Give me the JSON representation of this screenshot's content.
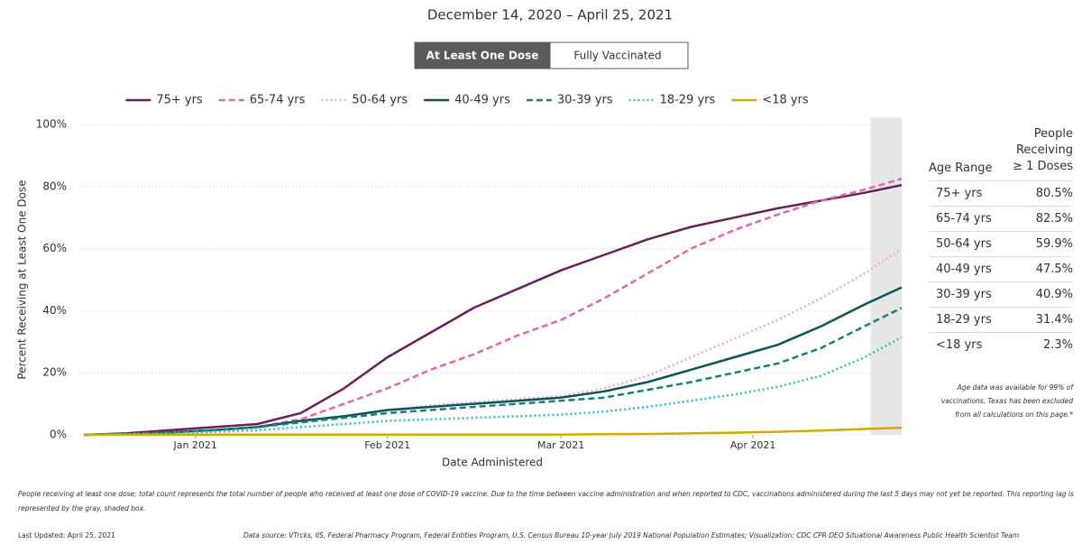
{
  "chart_data": {
    "type": "line",
    "title": "December 14, 2020 – April 25, 2021",
    "toggle": {
      "options": [
        "At Least One Dose",
        "Fully Vaccinated"
      ],
      "active": 0
    },
    "x_label": "Date Administered",
    "y_label": "Percent Receiving at Least One Dose",
    "x": [
      "2020-12-14",
      "2020-12-21",
      "2020-12-28",
      "2021-01-04",
      "2021-01-11",
      "2021-01-18",
      "2021-01-25",
      "2021-02-01",
      "2021-02-08",
      "2021-02-15",
      "2021-02-22",
      "2021-03-01",
      "2021-03-08",
      "2021-03-15",
      "2021-03-22",
      "2021-03-29",
      "2021-04-05",
      "2021-04-12",
      "2021-04-19",
      "2021-04-25"
    ],
    "xlim": [
      "2020-12-14",
      "2021-04-25"
    ],
    "xticks": [
      {
        "value": "2021-01-01",
        "label": "Jan 2021"
      },
      {
        "value": "2021-02-01",
        "label": "Feb 2021"
      },
      {
        "value": "2021-03-01",
        "label": "Mar 2021"
      },
      {
        "value": "2021-04-01",
        "label": "Apr 2021"
      }
    ],
    "ylim": [
      0,
      100
    ],
    "yticks": [
      {
        "value": 0,
        "label": "0%"
      },
      {
        "value": 20,
        "label": "20%"
      },
      {
        "value": 40,
        "label": "40%"
      },
      {
        "value": 60,
        "label": "60%"
      },
      {
        "value": 80,
        "label": "80%"
      },
      {
        "value": 100,
        "label": "100%"
      }
    ],
    "grid": true,
    "shaded_range": [
      "2021-04-20",
      "2021-04-25"
    ],
    "series": [
      {
        "name": "75+ yrs",
        "color": "#6b1f5a",
        "dash": "solid",
        "values": [
          0,
          0.5,
          1.5,
          2.5,
          3.5,
          7,
          15,
          25,
          33,
          41,
          47,
          53,
          58,
          63,
          67,
          70,
          73,
          75.5,
          78,
          80.5
        ]
      },
      {
        "name": "65-74 yrs",
        "color": "#e066b0",
        "dash": "dashed",
        "values": [
          0,
          0.3,
          0.8,
          1.5,
          2.5,
          5,
          10,
          15,
          21,
          26,
          32,
          37,
          44,
          52,
          60,
          66,
          71,
          75.5,
          79,
          82.5
        ]
      },
      {
        "name": "50-64 yrs",
        "color": "#f2a6d8",
        "dash": "dotted",
        "values": [
          0,
          0.3,
          0.8,
          1.5,
          2.5,
          4.5,
          6,
          8,
          9.5,
          10.5,
          11.5,
          12.5,
          15,
          19,
          25,
          31,
          37,
          44,
          52,
          59.9
        ]
      },
      {
        "name": "40-49 yrs",
        "color": "#0b5557",
        "dash": "solid",
        "values": [
          0,
          0.3,
          0.8,
          1.5,
          2.5,
          4.5,
          6,
          8,
          9,
          10,
          11,
          12,
          14,
          17,
          21,
          25,
          29,
          35,
          42,
          47.5
        ]
      },
      {
        "name": "30-39 yrs",
        "color": "#17807e",
        "dash": "dashed",
        "values": [
          0,
          0.3,
          0.8,
          1.5,
          2.5,
          4,
          5.5,
          7,
          8,
          9,
          10,
          11,
          12,
          14.5,
          17,
          20,
          23,
          28,
          35,
          40.9
        ]
      },
      {
        "name": "18-29 yrs",
        "color": "#2fbfbf",
        "dash": "dotted",
        "values": [
          0,
          0.2,
          0.5,
          1,
          1.5,
          2.5,
          3.5,
          4.5,
          5,
          5.5,
          6,
          6.5,
          7.5,
          9,
          11,
          13,
          15.5,
          19,
          25,
          31.4
        ]
      },
      {
        "name": "<18 yrs",
        "color": "#d4ab00",
        "dash": "solid",
        "values": [
          0,
          0.1,
          0.1,
          0.1,
          0.1,
          0.1,
          0.1,
          0.1,
          0.1,
          0.1,
          0.1,
          0.1,
          0.2,
          0.3,
          0.5,
          0.7,
          1,
          1.4,
          1.9,
          2.3
        ]
      }
    ]
  },
  "table": {
    "header": [
      "Age Range",
      "People Receiving ≥ 1 Doses"
    ],
    "rows": [
      [
        "75+ yrs",
        "80.5%"
      ],
      [
        "65-74 yrs",
        "82.5%"
      ],
      [
        "50-64 yrs",
        "59.9%"
      ],
      [
        "40-49 yrs",
        "47.5%"
      ],
      [
        "30-39 yrs",
        "40.9%"
      ],
      [
        "18-29 yrs",
        "31.4%"
      ],
      [
        "<18 yrs",
        "2.3%"
      ]
    ],
    "note": "Age data was available for 99% of vaccinations. Texas has been excluded from all calculations on this page.*"
  },
  "footer": {
    "footnote": "People receiving at least one dose; total count represents the total number of people who received at least one dose of COVID-19 vaccine. Due to the time between vaccine administration and when reported to CDC, vaccinations administered during the last 5 days may not yet be reported. This reporting lag is represented by the gray, shaded box.",
    "updated": "Last Updated: April 25, 2021",
    "source": "Data source: VTrcks, IIS, Federal Pharmacy Program, Federal Entities Program, U.S. Census Bureau 10-year July 2019 National Population Estimates; Visualization: CDC CPR DEO Situational Awareness Public Health Scientist Team"
  }
}
